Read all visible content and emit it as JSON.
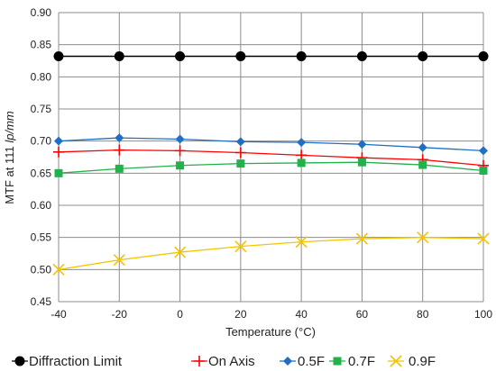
{
  "chart_data": {
    "type": "line",
    "xlabel": "Temperature (°C)",
    "ylabel_prefix": "MTF at 111 ",
    "ylabel_unit": "lp/mm",
    "x": [
      -40,
      -20,
      0,
      20,
      40,
      60,
      80,
      100
    ],
    "x_ticks": [
      "-40",
      "-20",
      "0",
      "20",
      "40",
      "60",
      "80",
      "100"
    ],
    "y_ticks": [
      "0.45",
      "0.50",
      "0.55",
      "0.60",
      "0.65",
      "0.70",
      "0.75",
      "0.80",
      "0.85",
      "0.90"
    ],
    "xlim": [
      -40,
      100
    ],
    "ylim": [
      0.45,
      0.9
    ],
    "grid": true,
    "legend_position": "bottom",
    "series": [
      {
        "name": "Diffraction Limit",
        "color": "#000000",
        "marker": "circle",
        "values": [
          0.832,
          0.832,
          0.832,
          0.832,
          0.832,
          0.832,
          0.832,
          0.832
        ]
      },
      {
        "name": "On Axis",
        "color": "#ff0000",
        "marker": "plus",
        "values": [
          0.683,
          0.686,
          0.685,
          0.682,
          0.678,
          0.674,
          0.671,
          0.662
        ]
      },
      {
        "name": "0.5F",
        "color": "#1f6fc5",
        "marker": "diamond",
        "values": [
          0.7,
          0.705,
          0.703,
          0.699,
          0.698,
          0.695,
          0.69,
          0.685
        ]
      },
      {
        "name": "0.7F",
        "color": "#22b14c",
        "marker": "square",
        "values": [
          0.65,
          0.657,
          0.662,
          0.665,
          0.666,
          0.667,
          0.663,
          0.654
        ]
      },
      {
        "name": "0.9F",
        "color": "#f5c400",
        "marker": "cross",
        "values": [
          0.5,
          0.515,
          0.527,
          0.536,
          0.543,
          0.548,
          0.55,
          0.548
        ]
      }
    ]
  }
}
